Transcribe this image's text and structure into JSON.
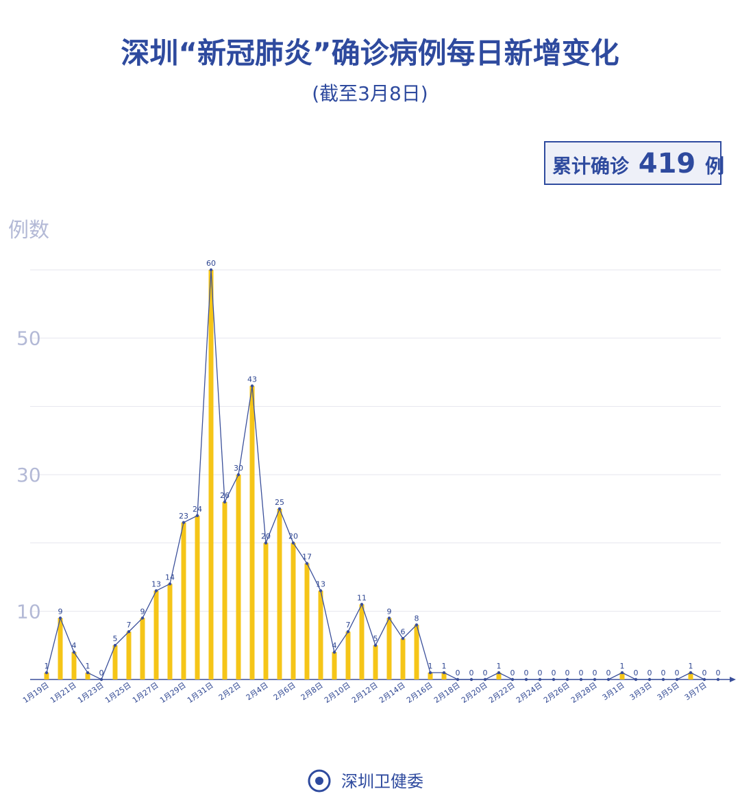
{
  "chart_data": {
    "type": "bar-line",
    "title": "深圳“新冠肺炎”确诊病例每日新增变化",
    "subtitle": "(截至3月8日)",
    "total_label": "累计确诊",
    "total_value": 419,
    "total_unit": "例",
    "y_label": "例数",
    "categories": [
      "1月19日",
      null,
      "1月21日",
      null,
      "1月23日",
      null,
      "1月25日",
      null,
      "1月27日",
      null,
      "1月29日",
      null,
      "1月31日",
      null,
      "2月2日",
      null,
      "2月4日",
      null,
      "2月6日",
      null,
      "2月8日",
      null,
      "2月10日",
      null,
      "2月12日",
      null,
      "2月14日",
      null,
      "2月16日",
      null,
      "2月18日",
      null,
      "2月20日",
      null,
      "2月22日",
      null,
      "2月24日",
      null,
      "2月26日",
      null,
      "2月28日",
      null,
      "3月1日",
      null,
      "3月3日",
      null,
      "3月5日",
      null,
      "3月7日",
      null
    ],
    "values": [
      1,
      9,
      4,
      1,
      0,
      5,
      7,
      9,
      13,
      14,
      23,
      24,
      60,
      26,
      30,
      43,
      20,
      25,
      20,
      17,
      13,
      4,
      7,
      11,
      5,
      9,
      6,
      8,
      1,
      1,
      0,
      0,
      0,
      1,
      0,
      0,
      0,
      0,
      0,
      0,
      0,
      0,
      1,
      0,
      0,
      0,
      0,
      1,
      0,
      0
    ],
    "bar_color": "#f5c518",
    "line_color": "#3a4f9a",
    "ylim": [
      0,
      60
    ],
    "yticks": [
      10,
      30,
      50
    ],
    "gridlines": [
      10,
      20,
      30,
      40,
      50,
      60
    ],
    "grid": true
  },
  "footer": "深圳卫健委"
}
